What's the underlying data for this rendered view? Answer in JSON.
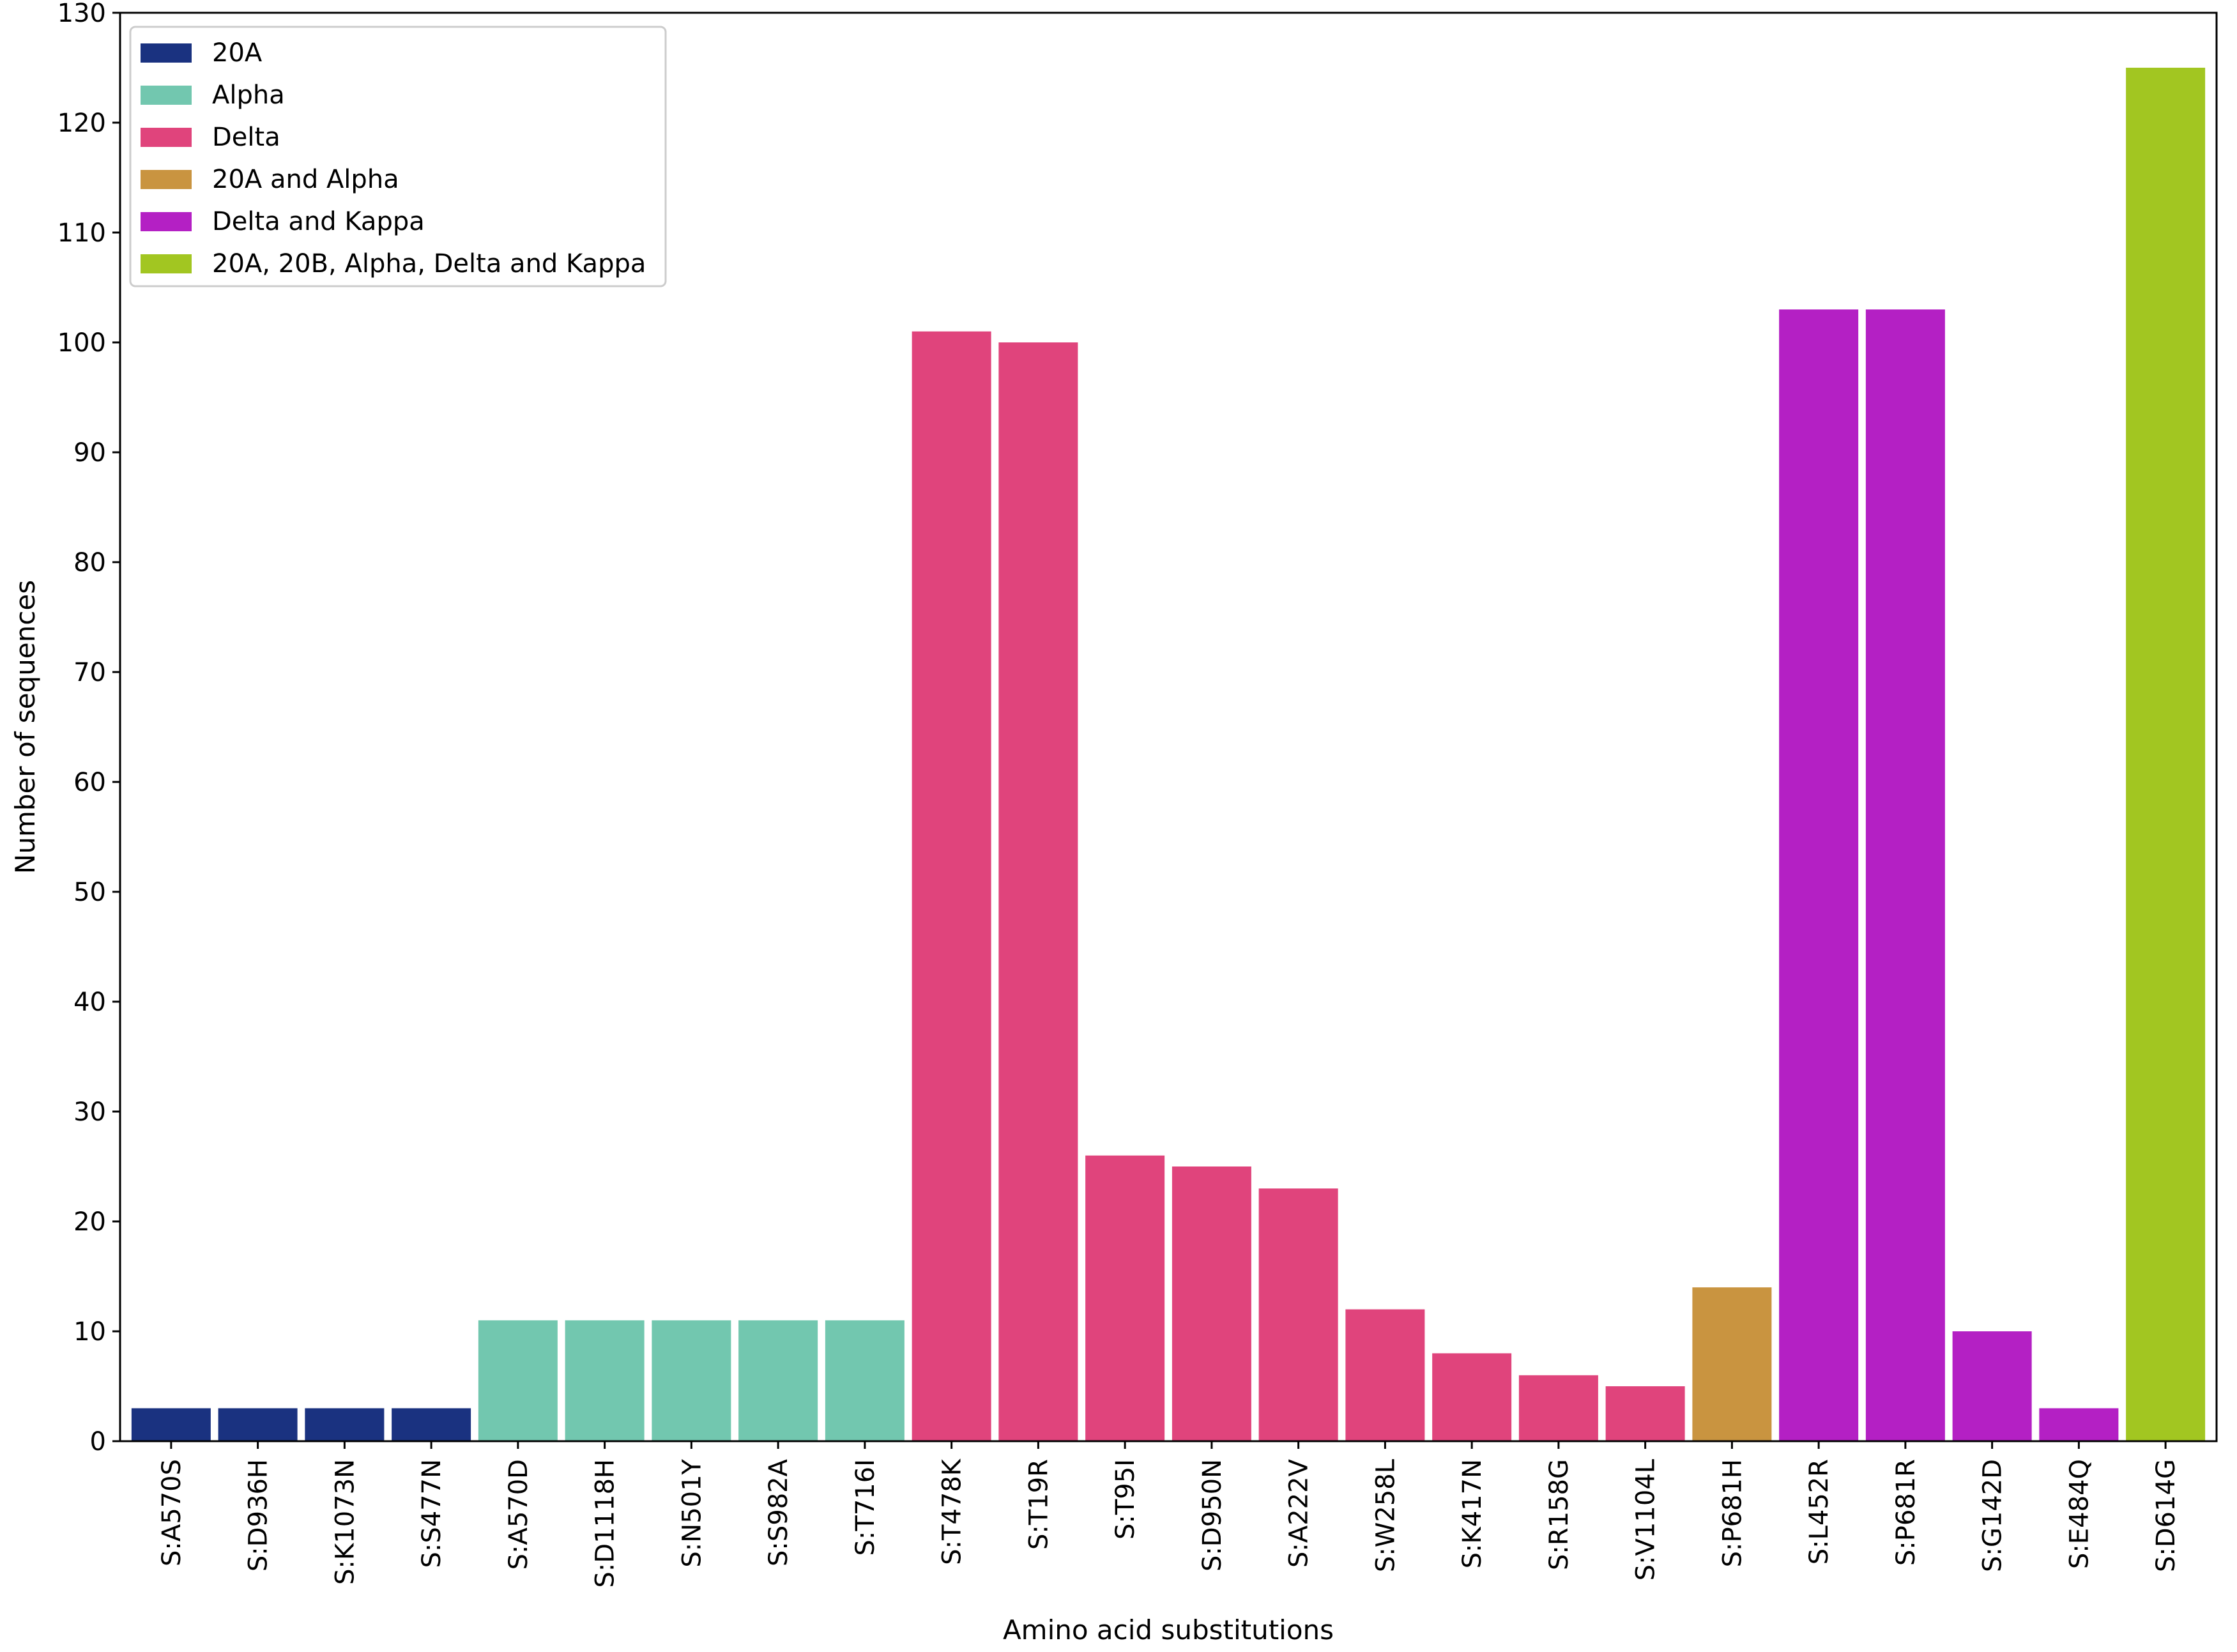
{
  "chart_data": {
    "type": "bar",
    "title": "",
    "xlabel": "Amino acid substitutions",
    "ylabel": "Number of sequences",
    "ylim": [
      0,
      130
    ],
    "yticks": [
      0,
      10,
      20,
      30,
      40,
      50,
      60,
      70,
      80,
      90,
      100,
      110,
      120,
      130
    ],
    "legend_position": "top-left",
    "groups": [
      {
        "name": "20A",
        "color": "#1a3280"
      },
      {
        "name": "Alpha",
        "color": "#72c7af"
      },
      {
        "name": "Delta",
        "color": "#e0447c"
      },
      {
        "name": "20A and Alpha",
        "color": "#c99440"
      },
      {
        "name": "Delta and Kappa",
        "color": "#b420c4"
      },
      {
        "name": "20A, 20B, Alpha, Delta and Kappa",
        "color": "#a2c621"
      }
    ],
    "bars": [
      {
        "label": "S:A570S",
        "value": 3,
        "group": 0
      },
      {
        "label": "S:D936H",
        "value": 3,
        "group": 0
      },
      {
        "label": "S:K1073N",
        "value": 3,
        "group": 0
      },
      {
        "label": "S:S477N",
        "value": 3,
        "group": 0
      },
      {
        "label": "S:A570D",
        "value": 11,
        "group": 1
      },
      {
        "label": "S:D1118H",
        "value": 11,
        "group": 1
      },
      {
        "label": "S:N501Y",
        "value": 11,
        "group": 1
      },
      {
        "label": "S:S982A",
        "value": 11,
        "group": 1
      },
      {
        "label": "S:T716I",
        "value": 11,
        "group": 1
      },
      {
        "label": "S:T478K",
        "value": 101,
        "group": 2
      },
      {
        "label": "S:T19R",
        "value": 100,
        "group": 2
      },
      {
        "label": "S:T95I",
        "value": 26,
        "group": 2
      },
      {
        "label": "S:D950N",
        "value": 25,
        "group": 2
      },
      {
        "label": "S:A222V",
        "value": 23,
        "group": 2
      },
      {
        "label": "S:W258L",
        "value": 12,
        "group": 2
      },
      {
        "label": "S:K417N",
        "value": 8,
        "group": 2
      },
      {
        "label": "S:R158G",
        "value": 6,
        "group": 2
      },
      {
        "label": "S:V1104L",
        "value": 5,
        "group": 2
      },
      {
        "label": "S:P681H",
        "value": 14,
        "group": 3
      },
      {
        "label": "S:L452R",
        "value": 103,
        "group": 4
      },
      {
        "label": "S:P681R",
        "value": 103,
        "group": 4
      },
      {
        "label": "S:G142D",
        "value": 10,
        "group": 4
      },
      {
        "label": "S:E484Q",
        "value": 3,
        "group": 4
      },
      {
        "label": "S:D614G",
        "value": 125,
        "group": 5
      }
    ]
  }
}
